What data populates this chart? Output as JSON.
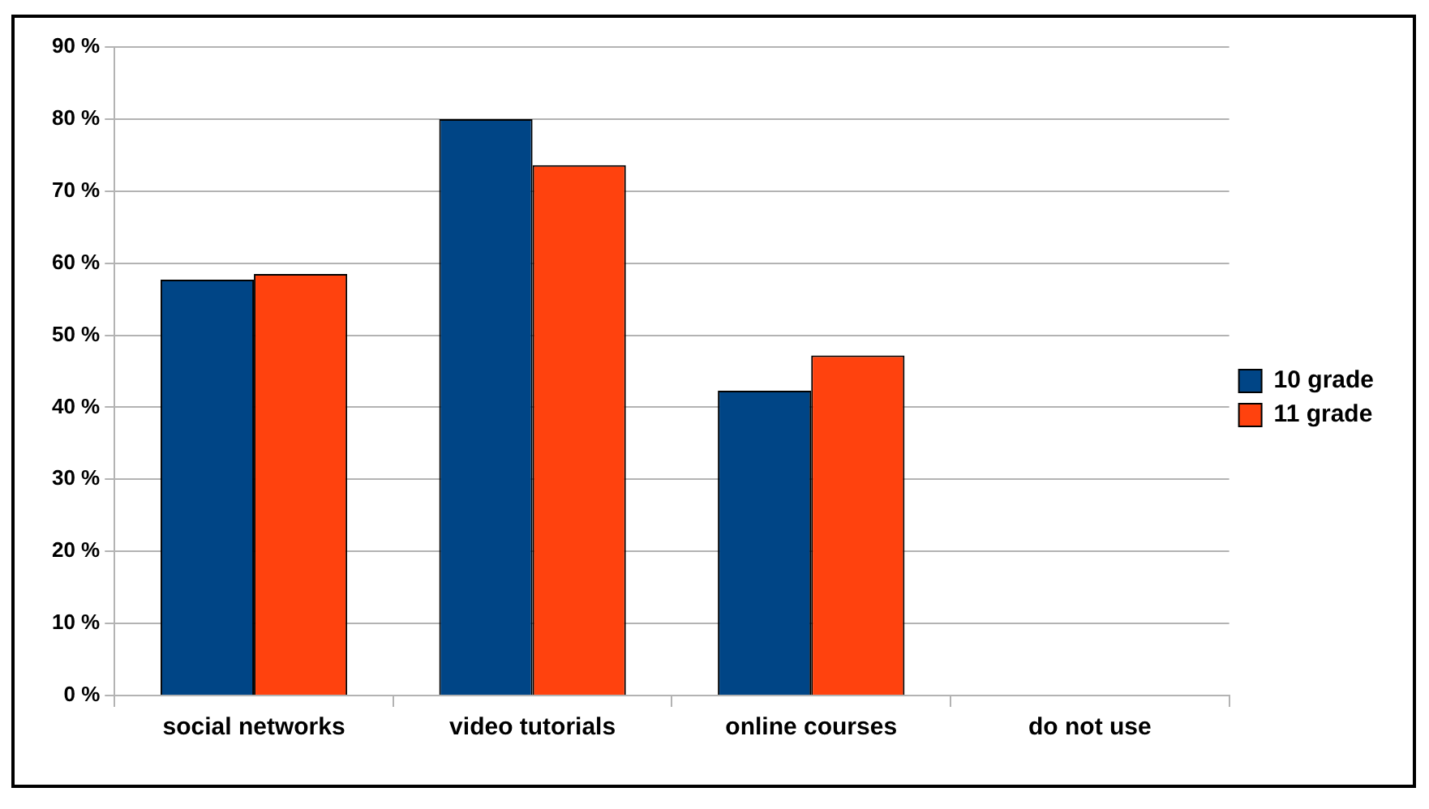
{
  "chart_data": {
    "type": "bar",
    "categories": [
      "social networks",
      "video tutorials",
      "online courses",
      "do not use"
    ],
    "series": [
      {
        "name": "10 grade",
        "color": "#004586",
        "values": [
          57.7,
          80,
          42.3,
          0
        ]
      },
      {
        "name": "11 grade",
        "color": "#ff420e",
        "values": [
          58.5,
          73.6,
          47.2,
          0
        ]
      }
    ],
    "ylim": [
      0,
      90
    ],
    "yticks": [
      {
        "value": 0,
        "label": "0 %"
      },
      {
        "value": 10,
        "label": "10 %"
      },
      {
        "value": 20,
        "label": "20 %"
      },
      {
        "value": 30,
        "label": "30 %"
      },
      {
        "value": 40,
        "label": "40 %"
      },
      {
        "value": 50,
        "label": "50 %"
      },
      {
        "value": 60,
        "label": "60 %"
      },
      {
        "value": 70,
        "label": "70 %"
      },
      {
        "value": 80,
        "label": "80 %"
      },
      {
        "value": 90,
        "label": "90 %"
      }
    ],
    "grid": "y",
    "legend": "right"
  }
}
